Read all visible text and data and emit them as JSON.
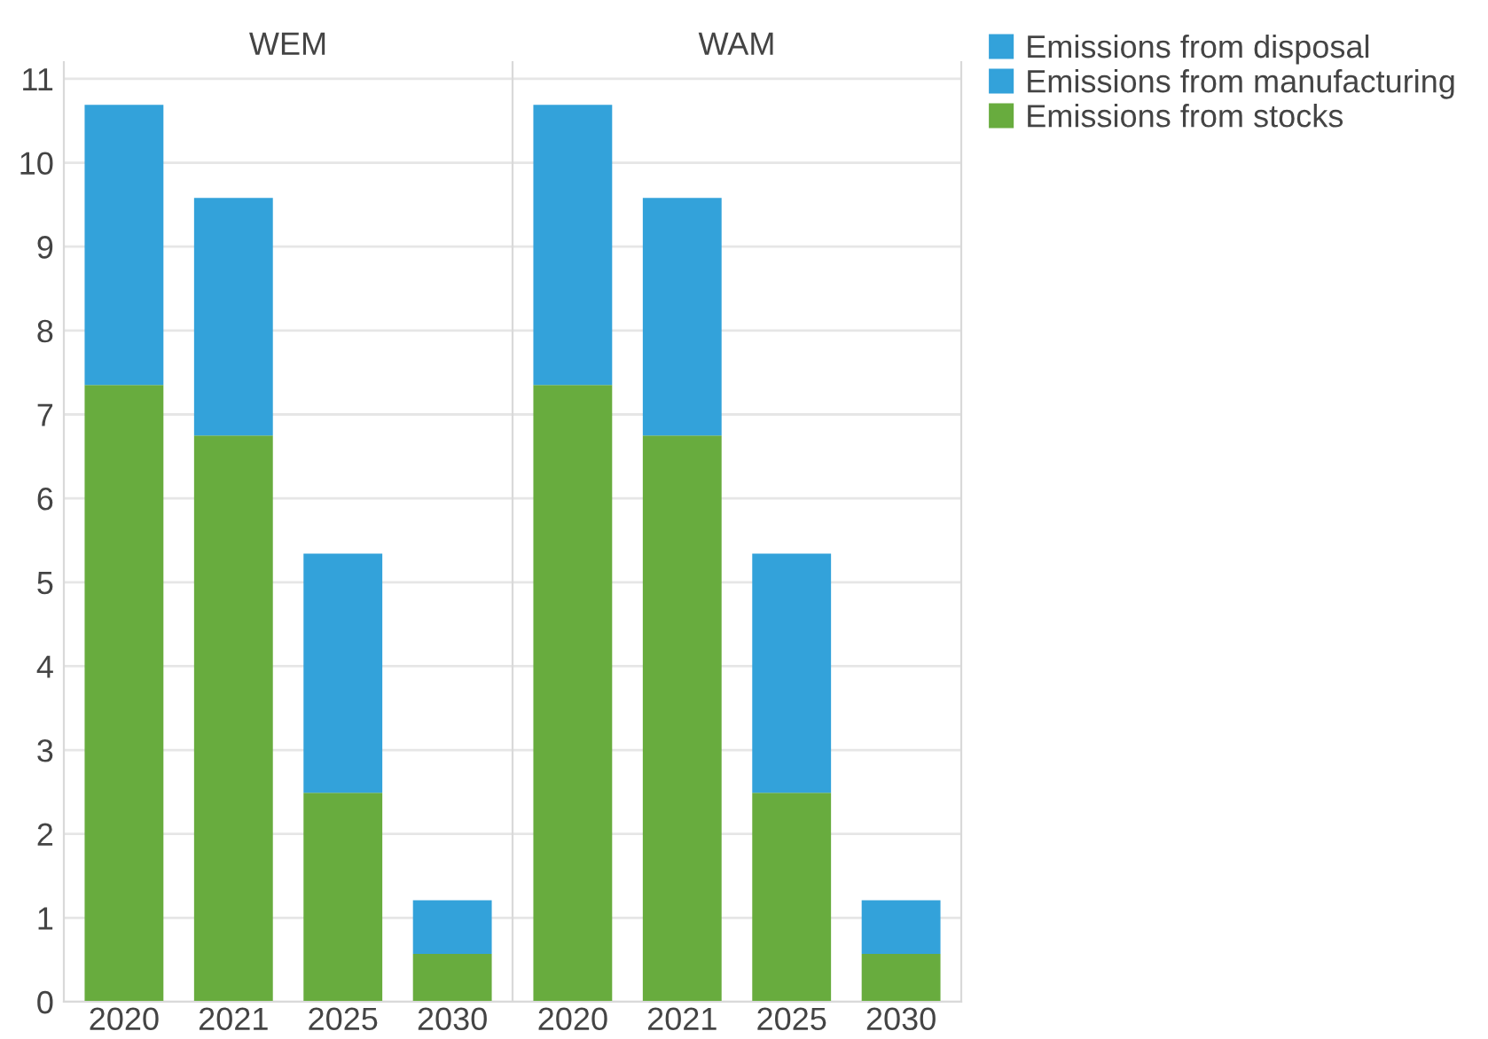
{
  "chart_data": [
    {
      "type": "bar",
      "title": "WEM",
      "stacked": true,
      "categories": [
        "2020",
        "2021",
        "2025",
        "2030"
      ],
      "ylim": [
        0,
        11.2
      ],
      "yticks": [
        0,
        1,
        2,
        3,
        4,
        5,
        6,
        7,
        8,
        9,
        10,
        11
      ],
      "grid": "y",
      "series": [
        {
          "color": "#68ac3e",
          "values": [
            7.35,
            6.75,
            2.49,
            0.57
          ]
        },
        {
          "color": "#33a2da",
          "values": [
            3.34,
            2.83,
            2.85,
            0.64
          ]
        },
        {
          "color": "#33a2da",
          "values": [
            0,
            0,
            0,
            0
          ]
        }
      ]
    },
    {
      "type": "bar",
      "title": "WAM",
      "stacked": true,
      "categories": [
        "2020",
        "2021",
        "2025",
        "2030"
      ],
      "ylim": [
        0,
        11.2
      ],
      "yticks": [
        0,
        1,
        2,
        3,
        4,
        5,
        6,
        7,
        8,
        9,
        10,
        11
      ],
      "grid": "y",
      "legend": "right",
      "tick_labels": "x",
      "series": [
        {
          "name": "Emissions from stocks",
          "color": "#68ac3e",
          "values": [
            7.35,
            6.75,
            2.49,
            0.57
          ]
        },
        {
          "name": "Emissions from manufacturing",
          "color": "#33a2da",
          "values": [
            3.34,
            2.83,
            2.85,
            0.64
          ]
        },
        {
          "name": "Emissions from disposal",
          "color": "#33a2da",
          "values": [
            0,
            0,
            0,
            0
          ]
        }
      ]
    }
  ]
}
